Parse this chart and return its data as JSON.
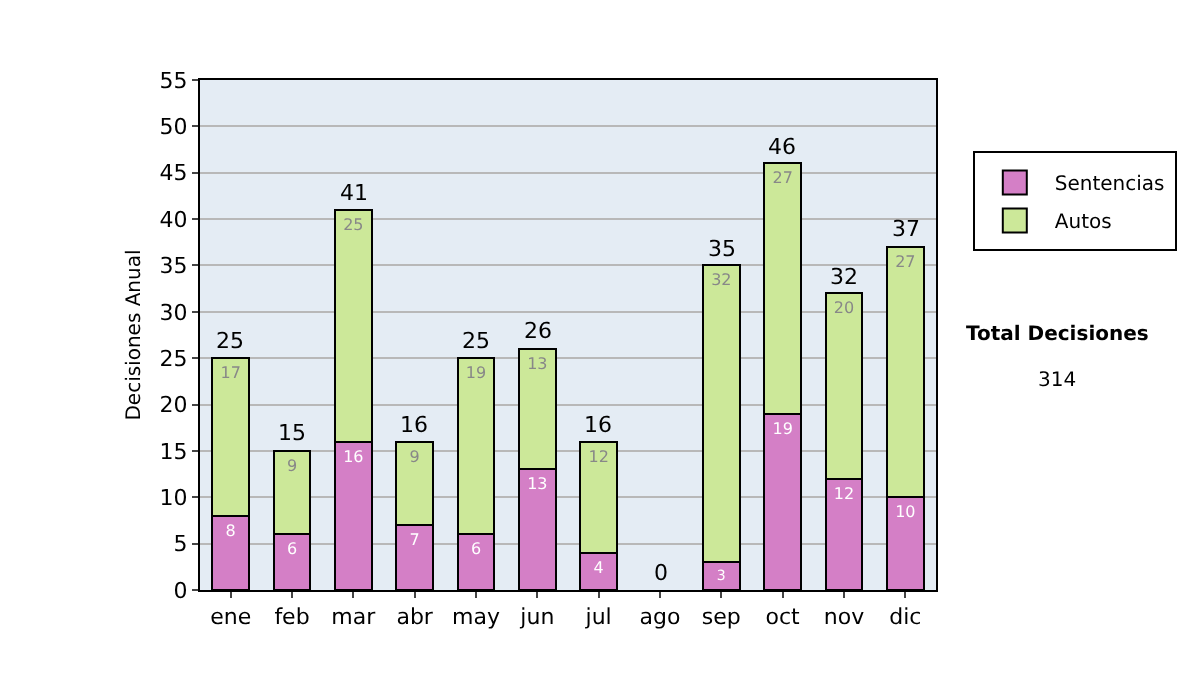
{
  "chart_data": {
    "type": "bar",
    "stacked": true,
    "ylabel": "Decisiones Anual",
    "categories": [
      "ene",
      "feb",
      "mar",
      "abr",
      "may",
      "jun",
      "jul",
      "ago",
      "sep",
      "oct",
      "nov",
      "dic"
    ],
    "series": [
      {
        "name": "Sentencias",
        "color": "#d47fc6",
        "values": [
          8,
          6,
          16,
          7,
          6,
          13,
          4,
          0,
          3,
          19,
          12,
          10
        ],
        "value_labels": [
          "8",
          "6",
          "16",
          "7",
          "6",
          "13",
          "4",
          null,
          "3",
          "19",
          "12",
          "10"
        ]
      },
      {
        "name": "Autos",
        "color": "#cce899",
        "values": [
          17,
          9,
          25,
          9,
          19,
          13,
          12,
          0,
          32,
          27,
          20,
          27
        ],
        "value_labels": [
          "17",
          "9",
          "25",
          "9",
          "19",
          "13",
          "12",
          null,
          "32",
          "27",
          "20",
          "27"
        ]
      }
    ],
    "totals": [
      "25",
      "15",
      "41",
      "16",
      "25",
      "26",
      "16",
      "0",
      "35",
      "46",
      "32",
      "37"
    ],
    "ylim": [
      0,
      55
    ],
    "yticks": [
      0,
      5,
      10,
      15,
      20,
      25,
      30,
      35,
      40,
      45,
      50,
      55
    ],
    "grid": "y",
    "legend": "right",
    "annotations": [
      "Total Decisiones",
      "314"
    ]
  }
}
